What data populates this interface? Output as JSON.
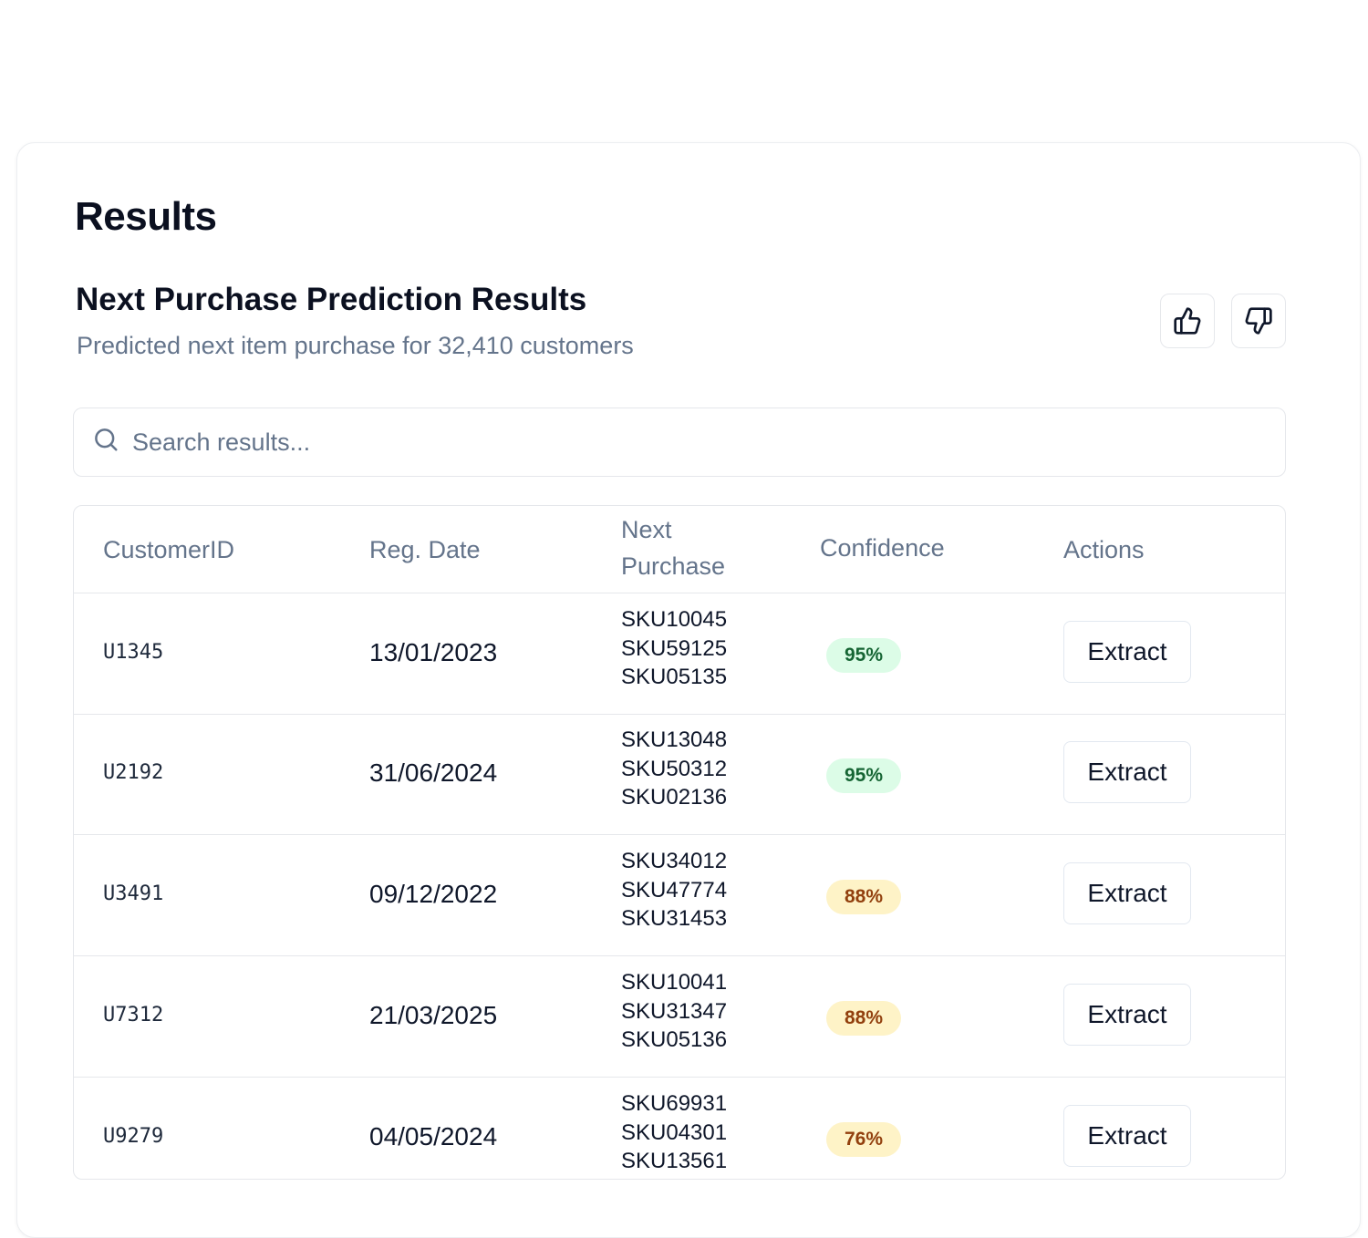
{
  "page": {
    "title": "Results"
  },
  "panel": {
    "title": "Next Purchase Prediction Results",
    "description": "Predicted next item purchase for 32,410 customers"
  },
  "feedback": {
    "thumbs_up_icon": "thumbs-up-icon",
    "thumbs_down_icon": "thumbs-down-icon"
  },
  "search": {
    "icon": "search-icon",
    "placeholder": "Search results..."
  },
  "table": {
    "headers": {
      "customer_id": "CustomerID",
      "reg_date": "Reg. Date",
      "next_purchase": "Next Purchase",
      "confidence": "Confidence",
      "actions": "Actions"
    },
    "rows": [
      {
        "customer_id": "U1345",
        "reg_date": "13/01/2023",
        "skus": [
          "SKU10045",
          "SKU59125",
          "SKU05135"
        ],
        "confidence": "95%",
        "level": "high",
        "action": "Extract"
      },
      {
        "customer_id": "U2192",
        "reg_date": "31/06/2024",
        "skus": [
          "SKU13048",
          "SKU50312",
          "SKU02136"
        ],
        "confidence": "95%",
        "level": "high",
        "action": "Extract"
      },
      {
        "customer_id": "U3491",
        "reg_date": "09/12/2022",
        "skus": [
          "SKU34012",
          "SKU47774",
          "SKU31453"
        ],
        "confidence": "88%",
        "level": "medium",
        "action": "Extract"
      },
      {
        "customer_id": "U7312",
        "reg_date": "21/03/2025",
        "skus": [
          "SKU10041",
          "SKU31347",
          "SKU05136"
        ],
        "confidence": "88%",
        "level": "medium",
        "action": "Extract"
      },
      {
        "customer_id": "U9279",
        "reg_date": "04/05/2024",
        "skus": [
          "SKU69931",
          "SKU04301",
          "SKU13561"
        ],
        "confidence": "76%",
        "level": "medium",
        "action": "Extract"
      }
    ]
  },
  "colors": {
    "badge_high_bg": "#dcfce7",
    "badge_high_text": "#166534",
    "badge_medium_bg": "#fef3c7",
    "badge_medium_text": "#92400e"
  }
}
